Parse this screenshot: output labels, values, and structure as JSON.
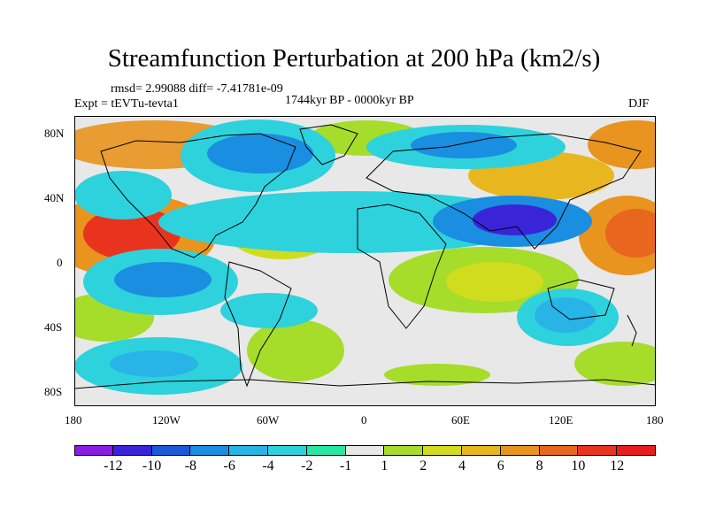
{
  "title": "Streamfunction Perturbation at 200 hPa (km2/s)",
  "stats": "rmsd= 2.99088 diff= -7.41781e-09",
  "experiment": "Expt = tEVTu-tevta1",
  "period": "1744kyr BP - 0000kyr BP",
  "season": "DJF",
  "lat_ticks": [
    "80N",
    "40N",
    "0",
    "40S",
    "80S"
  ],
  "lon_ticks": [
    "180",
    "120W",
    "60W",
    "0",
    "60E",
    "120E",
    "180"
  ],
  "colorbar": {
    "labels": [
      "-12",
      "-10",
      "-8",
      "-6",
      "-4",
      "-2",
      "-1",
      "1",
      "2",
      "4",
      "6",
      "8",
      "10",
      "12"
    ],
    "colors": [
      "#8a1ee0",
      "#3a24d8",
      "#1a5ad8",
      "#1a8ee0",
      "#28b4e6",
      "#2ed2dc",
      "#28e6a4",
      "#e8e8e8",
      "#a6dc2a",
      "#d2dc1e",
      "#e8b61e",
      "#e8941e",
      "#e8661e",
      "#e8341e",
      "#e81e1e"
    ]
  }
}
